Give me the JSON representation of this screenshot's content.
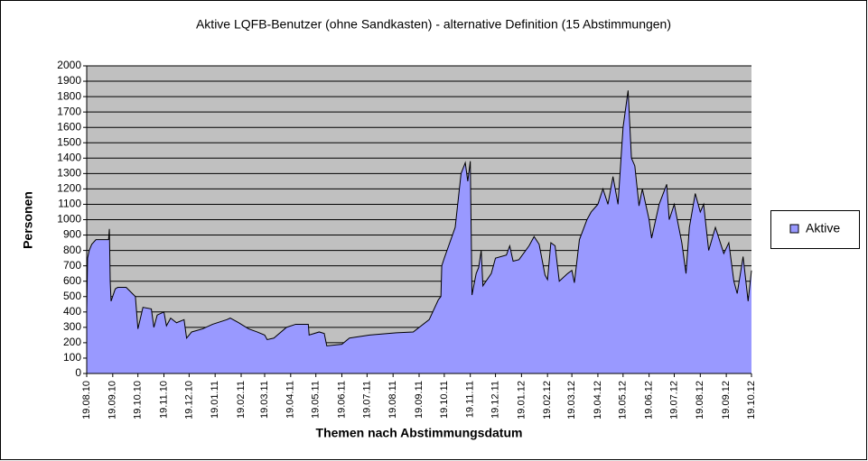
{
  "chart_data": {
    "type": "area",
    "title": "Aktive LQFB-Benutzer (ohne Sandkasten) - alternative Definition (15 Abstimmungen)",
    "x_label": "Themen nach Abstimmungsdatum",
    "y_label": "Personen",
    "ylim": [
      0,
      2000
    ],
    "yticks": [
      0,
      100,
      200,
      300,
      400,
      500,
      600,
      700,
      800,
      900,
      1000,
      1100,
      1200,
      1300,
      1400,
      1500,
      1600,
      1700,
      1800,
      1900,
      2000
    ],
    "xlim": [
      "19.08.10",
      "19.10.12"
    ],
    "xticks": [
      "19.08.10",
      "19.09.10",
      "19.10.10",
      "19.11.10",
      "19.12.10",
      "19.01.11",
      "19.02.11",
      "19.03.11",
      "19.04.11",
      "19.05.11",
      "19.06.11",
      "19.07.11",
      "19.08.11",
      "19.09.11",
      "19.10.11",
      "19.11.11",
      "19.12.11",
      "19.01.12",
      "19.02.12",
      "19.03.12",
      "19.04.12",
      "19.05.12",
      "19.06.12",
      "19.07.12",
      "19.08.12",
      "19.09.12",
      "19.10.12"
    ],
    "grid": true,
    "plot_background": "#c0c0c0",
    "legend_position": "right",
    "x": [
      "19.08.10",
      "20.08.10",
      "22.08.10",
      "25.08.10",
      "30.08.10",
      "14.09.10",
      "15.09.10",
      "16.09.10",
      "17.09.10",
      "22.09.10",
      "25.09.10",
      "05.10.10",
      "16.10.10",
      "19.10.10",
      "25.10.10",
      "04.11.10",
      "07.11.10",
      "11.11.10",
      "19.11.10",
      "22.11.10",
      "27.11.10",
      "04.12.10",
      "13.12.10",
      "16.12.10",
      "22.12.10",
      "04.01.11",
      "16.01.11",
      "02.02.11",
      "06.02.11",
      "16.02.11",
      "28.02.11",
      "10.03.11",
      "19.03.11",
      "22.03.11",
      "30.03.11",
      "14.04.11",
      "25.04.11",
      "10.05.11",
      "11.05.11",
      "23.05.11",
      "29.05.11",
      "01.06.11",
      "19.06.11",
      "28.06.11",
      "22.07.11",
      "23.08.11",
      "12.09.11",
      "01.10.11",
      "12.10.11",
      "15.10.11",
      "16.10.11",
      "19.10.11",
      "01.11.11",
      "08.11.11",
      "13.11.11",
      "16.11.11",
      "19.11.11",
      "21.11.11",
      "26.11.11",
      "29.11.11",
      "02.12.11",
      "04.12.11",
      "14.12.11",
      "19.12.11",
      "01.01.12",
      "05.01.12",
      "09.01.12",
      "16.01.12",
      "28.01.12",
      "03.02.12",
      "09.02.12",
      "16.02.12",
      "19.02.12",
      "23.02.12",
      "28.02.12",
      "04.03.12",
      "14.03.12",
      "19.03.12",
      "22.03.12",
      "28.03.12",
      "06.04.12",
      "11.04.12",
      "19.04.12",
      "25.04.12",
      "01.05.12",
      "07.05.12",
      "13.05.12",
      "19.05.12",
      "25.05.12",
      "29.05.12",
      "02.06.12",
      "07.06.12",
      "11.06.12",
      "19.06.12",
      "22.06.12",
      "01.07.12",
      "10.07.12",
      "13.07.12",
      "19.07.12",
      "28.07.12",
      "02.08.12",
      "06.08.12",
      "13.08.12",
      "19.08.12",
      "23.08.12",
      "29.08.12",
      "06.09.12",
      "16.09.12",
      "22.09.12",
      "28.09.12",
      "02.10.12",
      "09.10.12",
      "15.10.12",
      "19.10.12"
    ],
    "series": [
      {
        "name": "Aktive",
        "color": "#9999ff",
        "line_color": "#000000",
        "values": [
          400,
          750,
          800,
          840,
          870,
          870,
          940,
          600,
          470,
          550,
          560,
          560,
          500,
          290,
          430,
          420,
          300,
          380,
          400,
          310,
          360,
          330,
          350,
          230,
          270,
          290,
          320,
          350,
          360,
          330,
          290,
          270,
          250,
          220,
          230,
          300,
          320,
          320,
          250,
          270,
          260,
          180,
          190,
          230,
          250,
          265,
          270,
          350,
          480,
          500,
          700,
          750,
          950,
          1300,
          1370,
          1250,
          1380,
          510,
          650,
          690,
          800,
          570,
          650,
          750,
          770,
          830,
          730,
          740,
          830,
          890,
          840,
          640,
          610,
          850,
          830,
          600,
          650,
          670,
          590,
          870,
          1000,
          1050,
          1100,
          1200,
          1100,
          1280,
          1100,
          1600,
          1840,
          1400,
          1350,
          1090,
          1200,
          1000,
          880,
          1100,
          1230,
          1000,
          1100,
          850,
          650,
          950,
          1170,
          1050,
          1100,
          800,
          950,
          780,
          850,
          600,
          520,
          760,
          470,
          670
        ]
      }
    ]
  }
}
